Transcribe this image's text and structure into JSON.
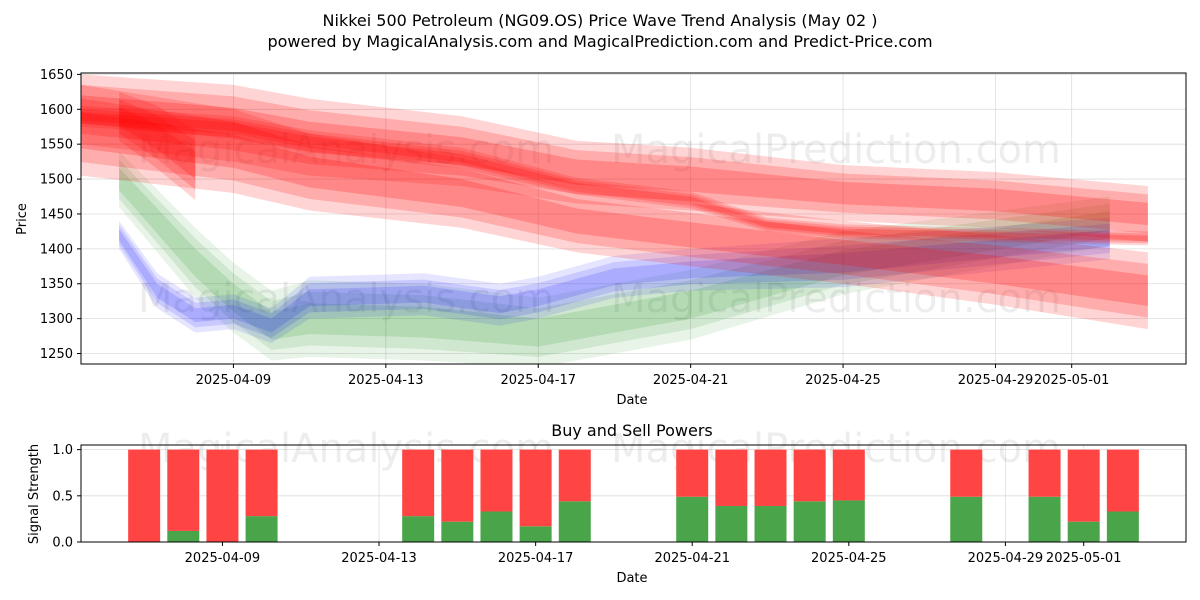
{
  "header": {
    "title": "Nikkei 500 Petroleum (NG09.OS) Price Wave Trend Analysis (May 02 )",
    "subtitle": "powered by MagicalAnalysis.com and MagicalPrediction.com and Predict-Price.com"
  },
  "watermarks": [
    "MagicalAnalysis.com",
    "MagicalPrediction.com"
  ],
  "colors": {
    "red": "#ff0000",
    "blue": "#0000ff",
    "green": "#008000",
    "sell_bar": "#ff4444",
    "buy_bar": "#4aa54a",
    "grid": "#dddddd"
  },
  "chart_data": [
    {
      "type": "area",
      "title": "",
      "xlabel": "Date",
      "ylabel": "Price",
      "x_range": [
        "2025-04-05",
        "2025-05-04"
      ],
      "ylim": [
        1235,
        1652
      ],
      "x_ticks": [
        "2025-04-09",
        "2025-04-13",
        "2025-04-17",
        "2025-04-21",
        "2025-04-25",
        "2025-04-29",
        "2025-05-01"
      ],
      "y_ticks": [
        1250,
        1300,
        1350,
        1400,
        1450,
        1500,
        1550,
        1600,
        1650
      ],
      "grid": true,
      "series": [
        {
          "name": "red-wave-upper",
          "color": "red",
          "x": [
            "2025-04-05",
            "2025-04-09",
            "2025-04-11",
            "2025-04-15",
            "2025-04-18",
            "2025-04-21",
            "2025-04-25",
            "2025-04-29",
            "2025-05-03"
          ],
          "center": [
            1600,
            1580,
            1560,
            1540,
            1510,
            1500,
            1480,
            1470,
            1450
          ],
          "half_width": [
            50,
            55,
            55,
            50,
            45,
            45,
            40,
            40,
            40
          ]
        },
        {
          "name": "red-wave-lower",
          "color": "red",
          "x": [
            "2025-04-05",
            "2025-04-09",
            "2025-04-11",
            "2025-04-15",
            "2025-04-18",
            "2025-04-21",
            "2025-04-25",
            "2025-04-29",
            "2025-05-03"
          ],
          "center": [
            1570,
            1540,
            1510,
            1480,
            1440,
            1420,
            1395,
            1370,
            1340
          ],
          "half_width": [
            65,
            60,
            55,
            50,
            45,
            45,
            45,
            50,
            55
          ]
        },
        {
          "name": "red-wave-core",
          "color": "red",
          "x": [
            "2025-04-05",
            "2025-04-09",
            "2025-04-11",
            "2025-04-15",
            "2025-04-18",
            "2025-04-21",
            "2025-04-23",
            "2025-04-25",
            "2025-05-03"
          ],
          "center": [
            1590,
            1575,
            1555,
            1530,
            1490,
            1470,
            1435,
            1425,
            1415
          ],
          "half_width": [
            15,
            15,
            15,
            15,
            12,
            12,
            10,
            10,
            10
          ]
        },
        {
          "name": "blue-wave",
          "color": "blue",
          "x": [
            "2025-04-06",
            "2025-04-07",
            "2025-04-08",
            "2025-04-09",
            "2025-04-10",
            "2025-04-11",
            "2025-04-14",
            "2025-04-16",
            "2025-04-17",
            "2025-04-19",
            "2025-04-21",
            "2025-04-25",
            "2025-05-02"
          ],
          "center": [
            1420,
            1340,
            1305,
            1310,
            1290,
            1330,
            1335,
            1320,
            1330,
            1360,
            1370,
            1380,
            1415
          ],
          "half_width": [
            20,
            25,
            25,
            25,
            25,
            30,
            30,
            30,
            30,
            30,
            30,
            35,
            30
          ]
        },
        {
          "name": "green-wave",
          "color": "green",
          "x": [
            "2025-04-06",
            "2025-04-07",
            "2025-04-08",
            "2025-04-09",
            "2025-04-10",
            "2025-04-11",
            "2025-04-14",
            "2025-04-17",
            "2025-04-21",
            "2025-04-25",
            "2025-05-02"
          ],
          "center": [
            1500,
            1440,
            1380,
            1330,
            1290,
            1300,
            1295,
            1280,
            1320,
            1380,
            1440
          ],
          "half_width": [
            40,
            45,
            50,
            50,
            50,
            55,
            55,
            50,
            50,
            45,
            35
          ]
        },
        {
          "name": "mixed-fan",
          "color": "red",
          "x": [
            "2025-04-06",
            "2025-04-07",
            "2025-04-08"
          ],
          "center": [
            1590,
            1560,
            1520
          ],
          "half_width": [
            35,
            45,
            50
          ]
        }
      ]
    },
    {
      "type": "bar",
      "title": "Buy and Sell Powers",
      "xlabel": "Date",
      "ylabel": "Signal Strength",
      "ylim": [
        0,
        1.05
      ],
      "y_ticks": [
        0.0,
        0.5,
        1.0
      ],
      "x_ticks": [
        "2025-04-09",
        "2025-04-13",
        "2025-04-17",
        "2025-04-21",
        "2025-04-25",
        "2025-04-29",
        "2025-05-01"
      ],
      "categories": [
        "2025-04-07",
        "2025-04-08",
        "2025-04-09",
        "2025-04-10",
        "2025-04-14",
        "2025-04-15",
        "2025-04-16",
        "2025-04-17",
        "2025-04-18",
        "2025-04-21",
        "2025-04-22",
        "2025-04-23",
        "2025-04-24",
        "2025-04-25",
        "2025-04-28",
        "2025-04-30",
        "2025-05-01",
        "2025-05-02"
      ],
      "series": [
        {
          "name": "Buy",
          "values": [
            0.0,
            0.12,
            0.0,
            0.28,
            0.28,
            0.22,
            0.33,
            0.17,
            0.44,
            0.49,
            0.39,
            0.39,
            0.44,
            0.45,
            0.49,
            0.49,
            0.22,
            0.33
          ]
        },
        {
          "name": "Sell",
          "values": [
            1.0,
            0.88,
            1.0,
            0.72,
            0.72,
            0.78,
            0.67,
            0.83,
            0.56,
            0.51,
            0.61,
            0.61,
            0.56,
            0.55,
            0.51,
            0.51,
            0.78,
            0.67
          ]
        }
      ]
    }
  ]
}
